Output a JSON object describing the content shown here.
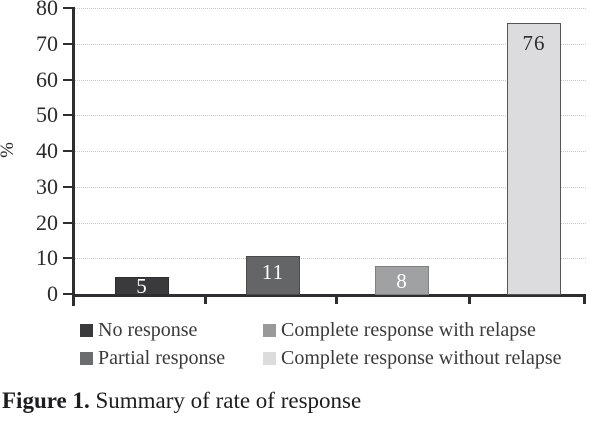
{
  "chart_data": {
    "type": "bar",
    "title": "",
    "xlabel": "",
    "ylabel": "%",
    "ylim": [
      0,
      80
    ],
    "ytick_step": 10,
    "yticks": [
      0,
      10,
      20,
      30,
      40,
      50,
      60,
      70,
      80
    ],
    "grid": "horizontal-dotted",
    "categories": [
      "No response",
      "Partial response",
      "Complete response with relapse",
      "Complete response without relapse"
    ],
    "values": [
      5,
      11,
      8,
      76
    ],
    "bar_colors": [
      "#3a3a3c",
      "#636567",
      "#a0a1a3",
      "#dcdcde"
    ],
    "bar_border_colors": [
      "#2e2e30",
      "#4b4b4d",
      "#7f8082",
      "#555557"
    ],
    "bar_label_colors": [
      "#ffffff",
      "#ffffff",
      "#ffffff",
      "#2e2e30"
    ],
    "axis_color": "#2e2e30",
    "gridline_color": "#c6c6c6",
    "legend": {
      "position": "bottom",
      "items": [
        {
          "label": "No response",
          "color": "#3a3a3c"
        },
        {
          "label": "Complete response with relapse",
          "color": "#98999b"
        },
        {
          "label": "Partial response",
          "color": "#6a6c6e"
        },
        {
          "label": "Complete response without relapse",
          "color": "#dcdcde"
        }
      ]
    }
  },
  "caption": {
    "label": "Figure 1.",
    "text": " Summary of rate of response"
  }
}
